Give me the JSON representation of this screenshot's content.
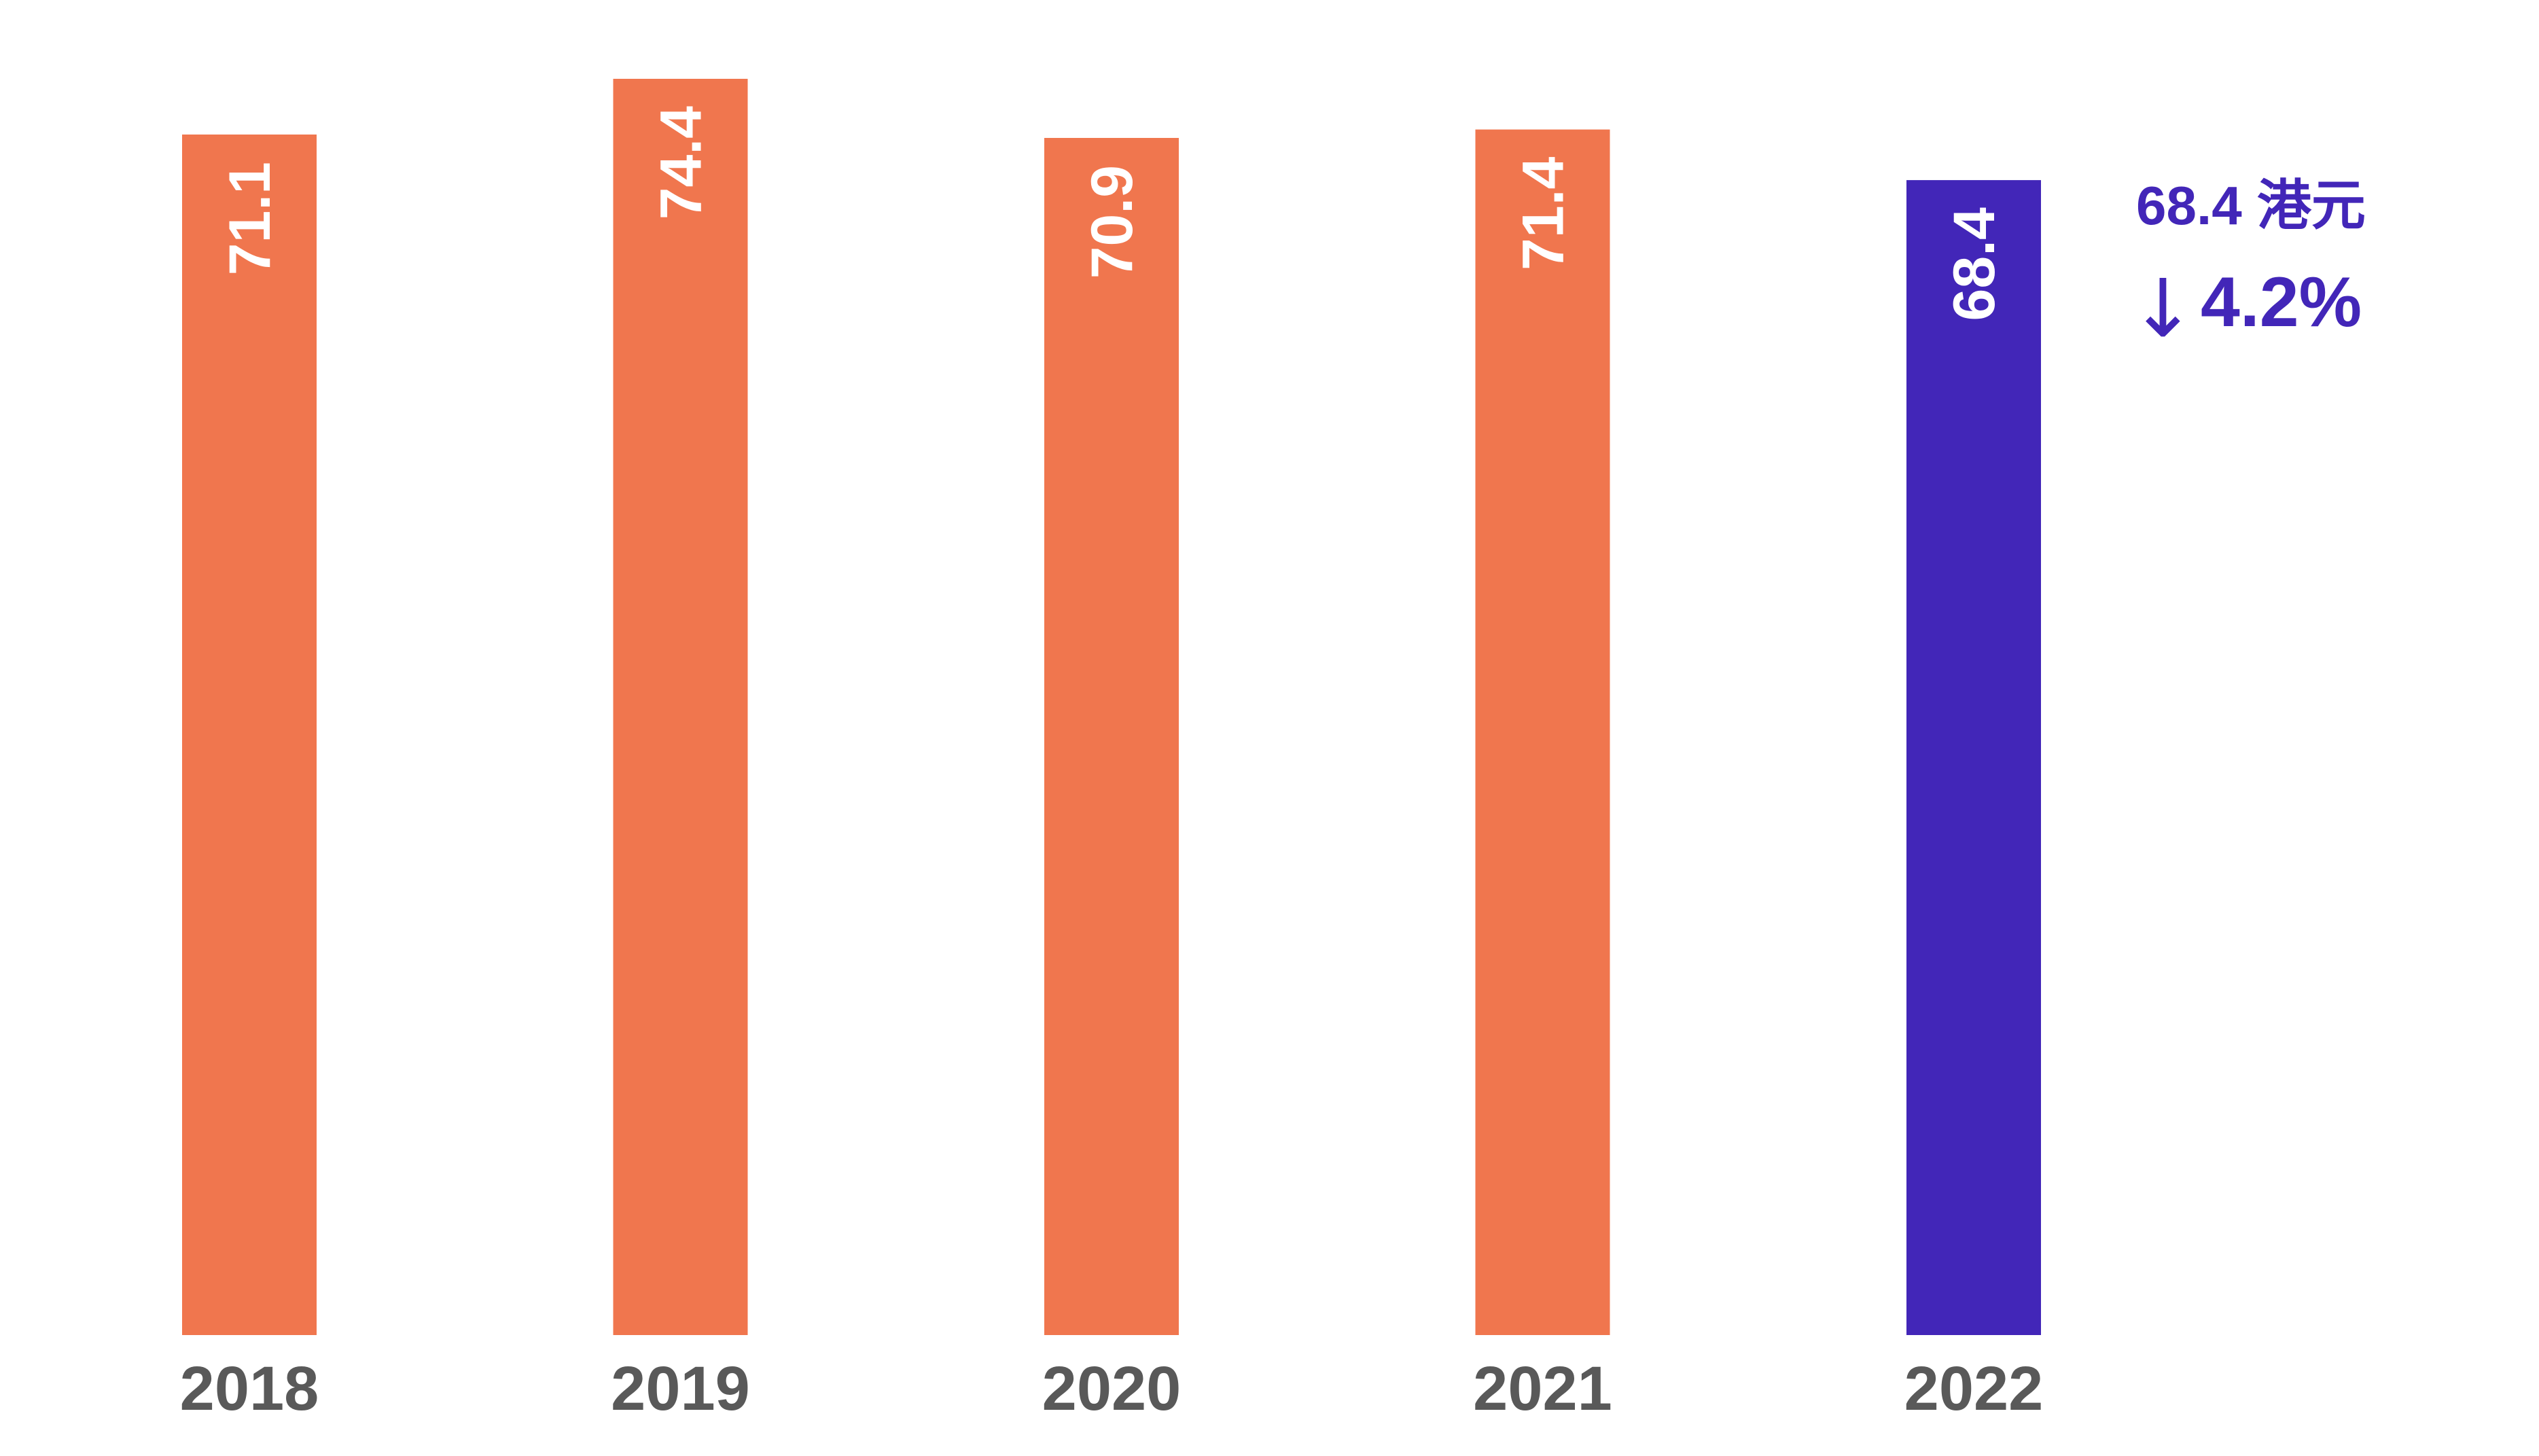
{
  "chart_data": {
    "type": "bar",
    "categories": [
      "2018",
      "2019",
      "2020",
      "2021",
      "2022"
    ],
    "values": [
      71.1,
      74.4,
      70.9,
      71.4,
      68.4
    ],
    "value_labels": [
      "71.1",
      "74.4",
      "70.9",
      "71.4",
      "68.4"
    ],
    "ylim": [
      0,
      74.4
    ],
    "grid": false,
    "highlight_index": 4,
    "colors": {
      "default_bar": "#F0764E",
      "highlight_bar": "#4226B8",
      "value_label": "#FFFFFF",
      "tick_label": "#595959",
      "callout": "#4226B8"
    },
    "annotation": {
      "value_text": "68.4 港元",
      "arrow": "↓",
      "change_text": "4.2%"
    }
  }
}
